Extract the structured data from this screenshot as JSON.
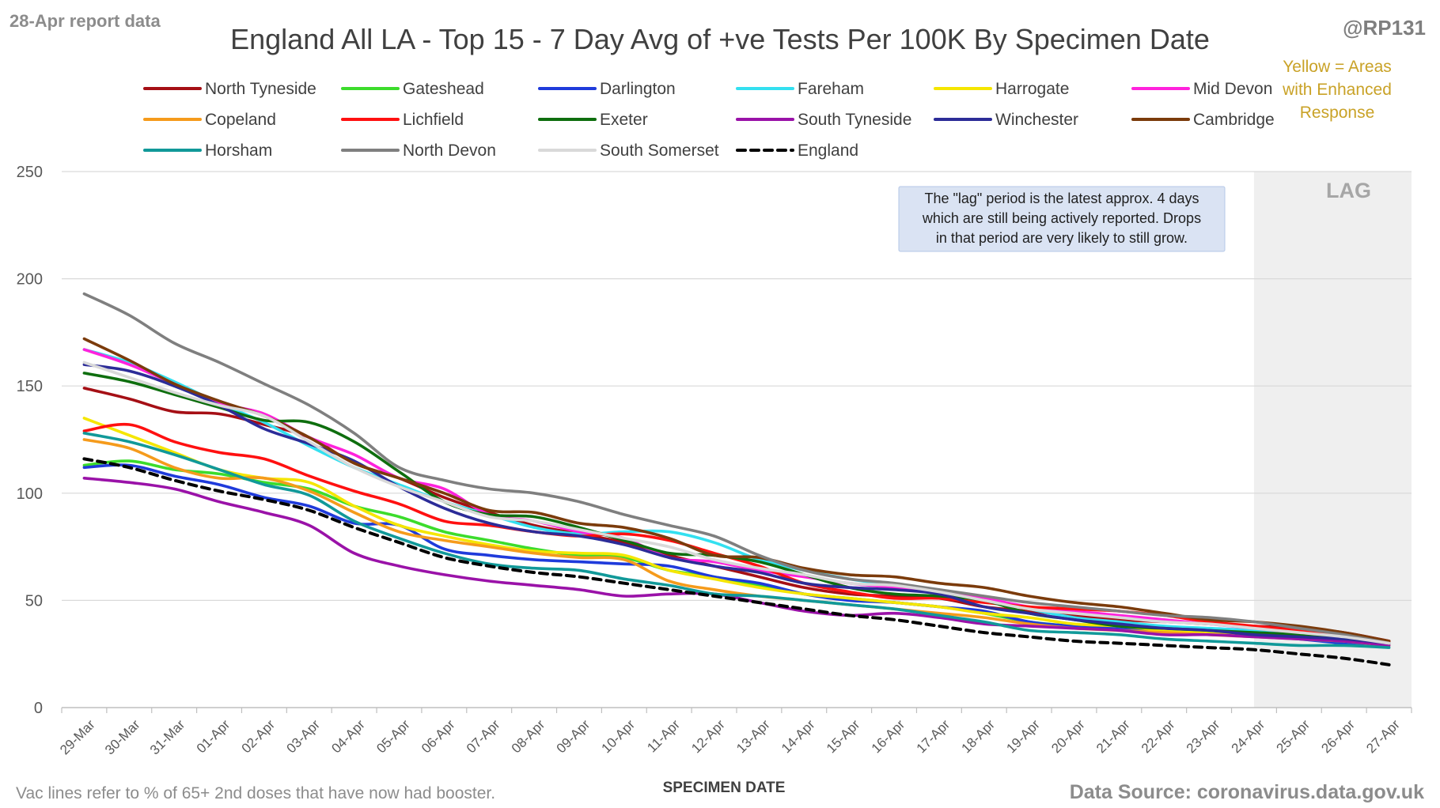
{
  "header": {
    "report_label": "28-Apr report data",
    "handle": "@RP131",
    "yellow_note": [
      "Yellow = Areas",
      "with Enhanced",
      "Response"
    ]
  },
  "footer": {
    "left_note": "Vac lines refer to % of 65+ 2nd doses that have now had booster.",
    "source": "Data Source: coronavirus.data.gov.uk"
  },
  "annotation": {
    "lag_label": "LAG",
    "lag_start_category": "24-Apr",
    "note_lines": [
      "The \"lag\" period is the latest approx. 4 days",
      "which are still being actively reported.  Drops",
      "in that period are very likely to still grow."
    ]
  },
  "colors": {
    "grid": "#d9d9d9",
    "lag_shade": "#efefef",
    "note_box_fill": "#dae3f3",
    "note_box_stroke": "#b4c7e7"
  },
  "chart_data": {
    "type": "line",
    "title": "England All LA - Top 15 - 7 Day Avg of +ve Tests Per 100K By Specimen Date",
    "xlabel": "SPECIMEN DATE",
    "ylabel": "",
    "ylim": [
      0,
      250
    ],
    "yticks": [
      0,
      50,
      100,
      150,
      200,
      250
    ],
    "grid": true,
    "legend_position": "top",
    "categories": [
      "29-Mar",
      "30-Mar",
      "31-Mar",
      "01-Apr",
      "02-Apr",
      "03-Apr",
      "04-Apr",
      "05-Apr",
      "06-Apr",
      "07-Apr",
      "08-Apr",
      "09-Apr",
      "10-Apr",
      "11-Apr",
      "12-Apr",
      "13-Apr",
      "14-Apr",
      "15-Apr",
      "16-Apr",
      "17-Apr",
      "18-Apr",
      "19-Apr",
      "20-Apr",
      "21-Apr",
      "22-Apr",
      "23-Apr",
      "24-Apr",
      "25-Apr",
      "26-Apr",
      "27-Apr"
    ],
    "series": [
      {
        "name": "North Tyneside",
        "color": "#a50f15",
        "dash": false,
        "values": [
          149,
          144,
          138,
          137,
          132,
          126,
          114,
          107,
          98,
          91,
          85,
          81,
          77,
          71,
          66,
          61,
          56,
          53,
          52,
          51,
          47,
          45,
          43,
          41,
          40,
          39,
          38,
          37,
          35,
          31
        ]
      },
      {
        "name": "Gateshead",
        "color": "#3cdc2c",
        "dash": false,
        "values": [
          113,
          115,
          111,
          109,
          105,
          102,
          94,
          89,
          82,
          78,
          74,
          71,
          70,
          64,
          61,
          57,
          53,
          51,
          49,
          47,
          44,
          40,
          38,
          37,
          36,
          35,
          34,
          33,
          31,
          30
        ]
      },
      {
        "name": "Darlington",
        "color": "#1f3bdb",
        "dash": false,
        "values": [
          112,
          113,
          108,
          104,
          98,
          94,
          86,
          85,
          74,
          71,
          69,
          68,
          67,
          66,
          61,
          58,
          53,
          50,
          49,
          47,
          45,
          40,
          38,
          37,
          35,
          35,
          34,
          32,
          30,
          29
        ]
      },
      {
        "name": "Fareham",
        "color": "#33e0f0",
        "dash": false,
        "values": [
          167,
          161,
          152,
          142,
          133,
          122,
          112,
          104,
          96,
          90,
          84,
          81,
          82,
          82,
          77,
          69,
          64,
          60,
          57,
          54,
          50,
          46,
          42,
          40,
          38,
          37,
          36,
          34,
          32,
          30
        ]
      },
      {
        "name": "Harrogate",
        "color": "#f5e600",
        "dash": false,
        "values": [
          135,
          127,
          119,
          111,
          107,
          105,
          94,
          85,
          80,
          76,
          73,
          72,
          71,
          64,
          60,
          56,
          53,
          51,
          49,
          47,
          44,
          42,
          39,
          38,
          36,
          35,
          34,
          33,
          31,
          29
        ]
      },
      {
        "name": "Mid Devon",
        "color": "#ff22dc",
        "dash": false,
        "values": [
          167,
          160,
          151,
          142,
          137,
          126,
          118,
          107,
          102,
          90,
          87,
          82,
          79,
          70,
          68,
          64,
          61,
          58,
          56,
          54,
          51,
          47,
          45,
          43,
          41,
          39,
          37,
          35,
          33,
          30
        ]
      },
      {
        "name": "Copeland",
        "color": "#f59b1c",
        "dash": false,
        "values": [
          125,
          121,
          112,
          107,
          107,
          101,
          91,
          82,
          78,
          75,
          72,
          70,
          69,
          59,
          55,
          52,
          50,
          48,
          46,
          44,
          42,
          39,
          37,
          36,
          35,
          34,
          33,
          32,
          31,
          30
        ]
      },
      {
        "name": "Lichfield",
        "color": "#ff1010",
        "dash": false,
        "values": [
          129,
          132,
          124,
          119,
          116,
          108,
          101,
          95,
          87,
          85,
          82,
          80,
          81,
          78,
          72,
          66,
          58,
          54,
          51,
          51,
          49,
          47,
          46,
          45,
          43,
          40,
          38,
          36,
          34,
          31
        ]
      },
      {
        "name": "Exeter",
        "color": "#0e6e0e",
        "dash": false,
        "values": [
          156,
          152,
          146,
          140,
          134,
          133,
          124,
          110,
          96,
          90,
          89,
          84,
          78,
          72,
          71,
          68,
          62,
          56,
          53,
          52,
          50,
          44,
          41,
          38,
          37,
          36,
          35,
          34,
          32,
          30
        ]
      },
      {
        "name": "South Tyneside",
        "color": "#9a12a8",
        "dash": false,
        "values": [
          107,
          105,
          102,
          96,
          91,
          85,
          72,
          66,
          62,
          59,
          57,
          55,
          52,
          53,
          53,
          49,
          45,
          43,
          44,
          42,
          39,
          38,
          37,
          36,
          34,
          34,
          33,
          32,
          31,
          29
        ]
      },
      {
        "name": "Winchester",
        "color": "#2c2c98",
        "dash": false,
        "values": [
          160,
          157,
          150,
          141,
          130,
          123,
          115,
          103,
          93,
          86,
          82,
          80,
          76,
          70,
          66,
          63,
          58,
          56,
          55,
          53,
          47,
          44,
          41,
          39,
          37,
          36,
          34,
          33,
          32,
          30
        ]
      },
      {
        "name": "Cambridge",
        "color": "#7b3b0b",
        "dash": false,
        "values": [
          172,
          162,
          151,
          143,
          136,
          126,
          114,
          107,
          100,
          92,
          91,
          86,
          84,
          79,
          71,
          70,
          65,
          62,
          61,
          58,
          56,
          52,
          49,
          47,
          44,
          41,
          40,
          38,
          35,
          31
        ]
      },
      {
        "name": "Horsham",
        "color": "#119999",
        "dash": false,
        "values": [
          128,
          124,
          118,
          111,
          104,
          99,
          87,
          79,
          72,
          67,
          65,
          64,
          60,
          57,
          53,
          52,
          50,
          48,
          46,
          43,
          40,
          36,
          35,
          34,
          32,
          31,
          30,
          29,
          29,
          28
        ]
      },
      {
        "name": "North Devon",
        "color": "#7f7f7f",
        "dash": false,
        "values": [
          193,
          183,
          170,
          161,
          151,
          141,
          128,
          112,
          106,
          102,
          100,
          96,
          90,
          85,
          80,
          71,
          64,
          60,
          58,
          55,
          52,
          49,
          47,
          45,
          43,
          42,
          40,
          37,
          34,
          30
        ]
      },
      {
        "name": "South Somerset",
        "color": "#d9d9d9",
        "dash": false,
        "values": [
          161,
          154,
          147,
          141,
          136,
          124,
          112,
          103,
          96,
          89,
          87,
          83,
          79,
          75,
          69,
          65,
          62,
          58,
          57,
          54,
          50,
          46,
          44,
          42,
          40,
          39,
          37,
          35,
          33,
          30
        ]
      },
      {
        "name": "England",
        "color": "#000000",
        "dash": true,
        "values": [
          116,
          112,
          106,
          101,
          97,
          92,
          84,
          77,
          70,
          66,
          63,
          61,
          58,
          55,
          52,
          49,
          46,
          43,
          41,
          38,
          35,
          33,
          31,
          30,
          29,
          28,
          27,
          25,
          23,
          20
        ]
      }
    ]
  }
}
